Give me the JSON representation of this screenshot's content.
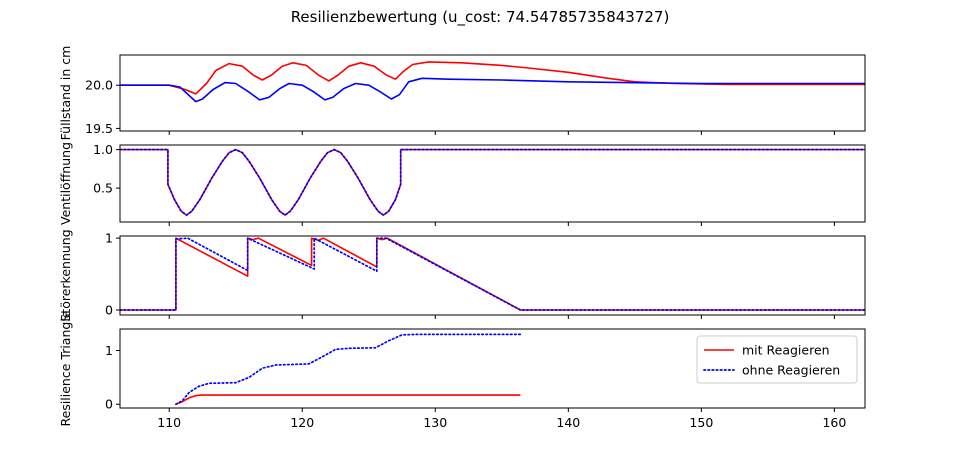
{
  "chart_data": {
    "type": "line",
    "title": "Resilienzbewertung (u_cost: 74.54785735843727)",
    "xlim": [
      106.3,
      162.3
    ],
    "x_ticks": [
      "110",
      "120",
      "130",
      "140",
      "150",
      "160"
    ],
    "colors": {
      "red": "#ff0000",
      "blue": "#0000ff"
    },
    "legend_location": "upper right (panel 4)",
    "panels": [
      {
        "ylabel": "Füllstand in cm",
        "ylim": [
          19.47,
          20.35
        ],
        "y_ticks": [
          "20.0",
          "19.5"
        ],
        "series": [
          {
            "color": "red",
            "style": "solid",
            "points": [
              [
                106.3,
                20.0
              ],
              [
                110.0,
                20.0
              ],
              [
                111.2,
                19.95
              ],
              [
                112.0,
                19.9
              ],
              [
                112.8,
                20.02
              ],
              [
                113.5,
                20.17
              ],
              [
                114.5,
                20.25
              ],
              [
                115.5,
                20.22
              ],
              [
                116.3,
                20.12
              ],
              [
                117.0,
                20.06
              ],
              [
                117.7,
                20.12
              ],
              [
                118.5,
                20.22
              ],
              [
                119.3,
                20.26
              ],
              [
                120.3,
                20.23
              ],
              [
                121.2,
                20.12
              ],
              [
                122.0,
                20.05
              ],
              [
                122.7,
                20.12
              ],
              [
                123.5,
                20.22
              ],
              [
                124.4,
                20.26
              ],
              [
                125.4,
                20.22
              ],
              [
                126.3,
                20.12
              ],
              [
                127.0,
                20.07
              ],
              [
                127.6,
                20.16
              ],
              [
                128.3,
                20.24
              ],
              [
                129.5,
                20.27
              ],
              [
                132.0,
                20.26
              ],
              [
                135.0,
                20.23
              ],
              [
                137.0,
                20.2
              ],
              [
                140.0,
                20.15
              ],
              [
                143.0,
                20.08
              ],
              [
                145.0,
                20.04
              ],
              [
                148.0,
                20.02
              ],
              [
                152.0,
                20.01
              ],
              [
                162.3,
                20.01
              ]
            ]
          },
          {
            "color": "blue",
            "style": "solid",
            "points": [
              [
                106.3,
                20.0
              ],
              [
                110.0,
                20.0
              ],
              [
                110.8,
                19.98
              ],
              [
                111.5,
                19.88
              ],
              [
                112.0,
                19.81
              ],
              [
                112.5,
                19.84
              ],
              [
                113.3,
                19.95
              ],
              [
                114.2,
                20.03
              ],
              [
                115.0,
                20.02
              ],
              [
                116.0,
                19.92
              ],
              [
                116.8,
                19.83
              ],
              [
                117.5,
                19.86
              ],
              [
                118.3,
                19.96
              ],
              [
                119.0,
                20.02
              ],
              [
                120.0,
                20.0
              ],
              [
                120.8,
                19.93
              ],
              [
                121.7,
                19.83
              ],
              [
                122.3,
                19.86
              ],
              [
                123.1,
                19.96
              ],
              [
                124.0,
                20.02
              ],
              [
                125.0,
                20.0
              ],
              [
                125.8,
                19.93
              ],
              [
                126.7,
                19.84
              ],
              [
                127.3,
                19.89
              ],
              [
                128.0,
                20.04
              ],
              [
                129.0,
                20.08
              ],
              [
                131.0,
                20.07
              ],
              [
                135.0,
                20.06
              ],
              [
                140.0,
                20.04
              ],
              [
                150.0,
                20.02
              ],
              [
                162.3,
                20.02
              ]
            ]
          }
        ]
      },
      {
        "ylabel": "Ventilöffnung",
        "ylim": [
          0.06,
          1.06
        ],
        "y_ticks": [
          "1.0",
          "0.5"
        ],
        "series": [
          {
            "color": "red",
            "style": "solid",
            "points": [
              [
                106.3,
                1.0
              ],
              [
                109.9,
                1.0
              ],
              [
                109.9,
                0.55
              ],
              [
                110.4,
                0.35
              ],
              [
                110.9,
                0.2
              ],
              [
                111.3,
                0.15
              ],
              [
                111.7,
                0.2
              ],
              [
                112.3,
                0.35
              ],
              [
                113.2,
                0.63
              ],
              [
                114.0,
                0.85
              ],
              [
                114.5,
                0.96
              ],
              [
                115.0,
                1.0
              ],
              [
                115.5,
                0.96
              ],
              [
                116.0,
                0.85
              ],
              [
                116.8,
                0.63
              ],
              [
                117.7,
                0.35
              ],
              [
                118.3,
                0.2
              ],
              [
                118.7,
                0.15
              ],
              [
                119.1,
                0.2
              ],
              [
                119.7,
                0.35
              ],
              [
                120.6,
                0.63
              ],
              [
                121.4,
                0.85
              ],
              [
                121.9,
                0.96
              ],
              [
                122.4,
                1.0
              ],
              [
                122.9,
                0.96
              ],
              [
                123.4,
                0.85
              ],
              [
                124.2,
                0.63
              ],
              [
                125.1,
                0.35
              ],
              [
                125.7,
                0.2
              ],
              [
                126.1,
                0.15
              ],
              [
                126.5,
                0.2
              ],
              [
                127.0,
                0.35
              ],
              [
                127.4,
                0.55
              ],
              [
                127.4,
                1.0
              ],
              [
                162.3,
                1.0
              ]
            ]
          },
          {
            "color": "blue",
            "style": "dotted",
            "points": [
              [
                106.3,
                1.0
              ],
              [
                109.9,
                1.0
              ],
              [
                109.9,
                0.55
              ],
              [
                110.4,
                0.35
              ],
              [
                110.9,
                0.2
              ],
              [
                111.3,
                0.15
              ],
              [
                111.7,
                0.2
              ],
              [
                112.3,
                0.35
              ],
              [
                113.2,
                0.63
              ],
              [
                114.0,
                0.85
              ],
              [
                114.5,
                0.96
              ],
              [
                115.0,
                1.0
              ],
              [
                115.5,
                0.96
              ],
              [
                116.0,
                0.85
              ],
              [
                116.8,
                0.63
              ],
              [
                117.7,
                0.35
              ],
              [
                118.3,
                0.2
              ],
              [
                118.7,
                0.15
              ],
              [
                119.1,
                0.2
              ],
              [
                119.7,
                0.35
              ],
              [
                120.6,
                0.63
              ],
              [
                121.4,
                0.85
              ],
              [
                121.9,
                0.96
              ],
              [
                122.4,
                1.0
              ],
              [
                122.9,
                0.96
              ],
              [
                123.4,
                0.85
              ],
              [
                124.2,
                0.63
              ],
              [
                125.1,
                0.35
              ],
              [
                125.7,
                0.2
              ],
              [
                126.1,
                0.15
              ],
              [
                126.5,
                0.2
              ],
              [
                127.0,
                0.35
              ],
              [
                127.4,
                0.55
              ],
              [
                127.4,
                1.0
              ],
              [
                162.3,
                1.0
              ]
            ]
          }
        ]
      },
      {
        "ylabel": "Störerkennung",
        "ylim": [
          -0.07,
          1.03
        ],
        "y_ticks": [
          "1",
          "0"
        ],
        "series": [
          {
            "color": "red",
            "style": "solid",
            "points": [
              [
                106.3,
                0.0
              ],
              [
                110.5,
                0.0
              ],
              [
                110.5,
                1.0
              ],
              [
                115.9,
                0.47
              ],
              [
                115.9,
                1.0
              ],
              [
                116.3,
                0.98
              ],
              [
                116.7,
                1.0
              ],
              [
                120.7,
                0.62
              ],
              [
                120.7,
                1.0
              ],
              [
                121.2,
                0.97
              ],
              [
                121.6,
                1.0
              ],
              [
                125.6,
                0.6
              ],
              [
                125.6,
                1.0
              ],
              [
                126.0,
                0.98
              ],
              [
                126.4,
                1.0
              ],
              [
                136.4,
                0.0
              ],
              [
                162.3,
                0.0
              ]
            ]
          },
          {
            "color": "blue",
            "style": "dotted",
            "points": [
              [
                106.3,
                0.0
              ],
              [
                110.5,
                0.0
              ],
              [
                110.5,
                0.99
              ],
              [
                111.4,
                1.0
              ],
              [
                115.9,
                0.55
              ],
              [
                115.9,
                1.0
              ],
              [
                120.9,
                0.57
              ],
              [
                120.9,
                1.0
              ],
              [
                125.6,
                0.54
              ],
              [
                125.6,
                1.0
              ],
              [
                126.3,
                1.0
              ],
              [
                136.4,
                0.0
              ],
              [
                162.3,
                0.0
              ]
            ]
          }
        ]
      },
      {
        "ylabel": "Resilience Triangle",
        "ylim": [
          -0.07,
          1.4
        ],
        "y_ticks": [
          "1",
          "0"
        ],
        "series": [
          {
            "color": "red",
            "style": "solid",
            "name": "mit Reagieren",
            "points": [
              [
                110.5,
                0.0
              ],
              [
                111.0,
                0.05
              ],
              [
                111.5,
                0.12
              ],
              [
                112.0,
                0.16
              ],
              [
                112.5,
                0.17
              ],
              [
                136.4,
                0.17
              ]
            ]
          },
          {
            "color": "blue",
            "style": "dotted",
            "name": "ohne Reagieren",
            "points": [
              [
                110.5,
                0.0
              ],
              [
                111.0,
                0.07
              ],
              [
                111.5,
                0.22
              ],
              [
                112.2,
                0.33
              ],
              [
                113.0,
                0.39
              ],
              [
                115.0,
                0.4
              ],
              [
                116.0,
                0.5
              ],
              [
                117.0,
                0.67
              ],
              [
                118.0,
                0.73
              ],
              [
                120.5,
                0.75
              ],
              [
                121.5,
                0.88
              ],
              [
                122.5,
                1.02
              ],
              [
                123.5,
                1.04
              ],
              [
                125.5,
                1.05
              ],
              [
                126.5,
                1.18
              ],
              [
                127.5,
                1.29
              ],
              [
                128.5,
                1.3
              ],
              [
                136.4,
                1.3
              ]
            ]
          }
        ]
      }
    ]
  }
}
